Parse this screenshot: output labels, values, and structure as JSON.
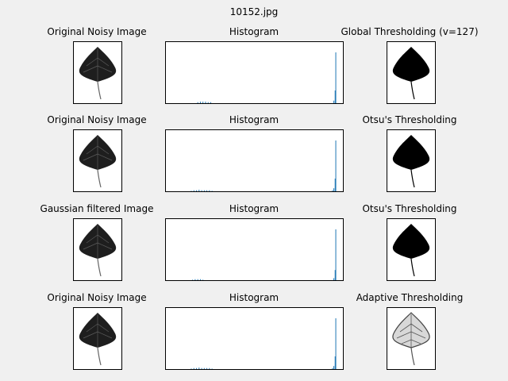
{
  "figure": {
    "suptitle": "10152.jpg",
    "background": "#f0f0f0"
  },
  "rows": [
    {
      "left_title": "Original Noisy Image",
      "mid_title": "Histogram",
      "right_title": "Global Thresholding (v=127)",
      "right_style": "binary-solid"
    },
    {
      "left_title": "Original Noisy Image",
      "mid_title": "Histogram",
      "right_title": "Otsu's Thresholding",
      "right_style": "binary-solid"
    },
    {
      "left_title": "Gaussian filtered Image",
      "mid_title": "Histogram",
      "right_title": "Otsu's Thresholding",
      "right_style": "binary-solid"
    },
    {
      "left_title": "Original Noisy Image",
      "mid_title": "Histogram",
      "right_title": "Adaptive Thresholding",
      "right_style": "adaptive-outline"
    }
  ],
  "images": {
    "subject": "leaf",
    "colors": {
      "leaf": "#1e1e1e",
      "vein": "#5a5a5a",
      "binary": "#000000",
      "adaptive": "#8a8a8a"
    }
  },
  "chart_data": [
    {
      "type": "bar",
      "title": "Histogram",
      "xlim": [
        0,
        256
      ],
      "ylim": [
        0,
        1
      ],
      "color": "#1f77b4",
      "bins": [
        [
          40,
          0.02
        ],
        [
          44,
          0.03
        ],
        [
          48,
          0.03
        ],
        [
          52,
          0.03
        ],
        [
          56,
          0.02
        ],
        [
          60,
          0.02
        ],
        [
          250,
          0.05
        ],
        [
          252,
          0.25
        ],
        [
          253,
          1.0
        ]
      ]
    },
    {
      "type": "bar",
      "title": "Histogram",
      "xlim": [
        0,
        256
      ],
      "ylim": [
        0,
        1
      ],
      "color": "#1f77b4",
      "bins": [
        [
          30,
          0.01
        ],
        [
          34,
          0.02
        ],
        [
          38,
          0.02
        ],
        [
          42,
          0.03
        ],
        [
          46,
          0.02
        ],
        [
          50,
          0.02
        ],
        [
          54,
          0.02
        ],
        [
          58,
          0.02
        ],
        [
          62,
          0.01
        ],
        [
          248,
          0.02
        ],
        [
          250,
          0.06
        ],
        [
          252,
          0.25
        ],
        [
          253,
          1.0
        ]
      ]
    },
    {
      "type": "bar",
      "title": "Histogram",
      "xlim": [
        0,
        256
      ],
      "ylim": [
        0,
        1
      ],
      "color": "#1f77b4",
      "bins": [
        [
          32,
          0.01
        ],
        [
          36,
          0.02
        ],
        [
          40,
          0.02
        ],
        [
          44,
          0.02
        ],
        [
          48,
          0.01
        ],
        [
          250,
          0.04
        ],
        [
          252,
          0.2
        ],
        [
          253,
          1.0
        ]
      ]
    },
    {
      "type": "bar",
      "title": "Histogram",
      "xlim": [
        0,
        256
      ],
      "ylim": [
        0,
        1
      ],
      "color": "#1f77b4",
      "bins": [
        [
          30,
          0.01
        ],
        [
          34,
          0.02
        ],
        [
          38,
          0.02
        ],
        [
          42,
          0.03
        ],
        [
          46,
          0.02
        ],
        [
          50,
          0.02
        ],
        [
          54,
          0.02
        ],
        [
          58,
          0.02
        ],
        [
          62,
          0.01
        ],
        [
          248,
          0.02
        ],
        [
          250,
          0.06
        ],
        [
          252,
          0.25
        ],
        [
          253,
          1.0
        ]
      ]
    }
  ]
}
